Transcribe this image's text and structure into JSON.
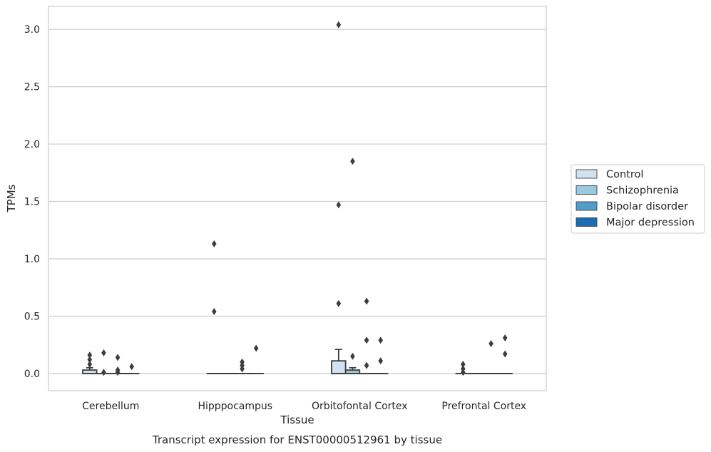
{
  "chart_data": {
    "type": "box",
    "xlabel": "Tissue",
    "ylabel": "TPMs",
    "caption": "Transcript expression for ENST00000512961 by tissue",
    "categories": [
      "Cerebellum",
      "Hipppocampus",
      "Orbitofontal Cortex",
      "Prefrontal Cortex"
    ],
    "ylim": [
      -0.15,
      3.2
    ],
    "yticks": [
      0.0,
      0.5,
      1.0,
      1.5,
      2.0,
      2.5,
      3.0
    ],
    "ytick_labels": [
      "0.0",
      "0.5",
      "1.0",
      "1.5",
      "2.0",
      "2.5",
      "3.0"
    ],
    "grid": "horizontal",
    "legend_position": "center-right",
    "series": [
      {
        "name": "Control",
        "color": "#d1e2f2",
        "boxes": [
          {
            "q1": 0.0,
            "median": 0.0,
            "q3": 0.03,
            "whisker_low": 0.0,
            "whisker_high": 0.05,
            "outliers": [
              0.08,
              0.12,
              0.16
            ]
          },
          {
            "q1": 0.0,
            "median": 0.0,
            "q3": 0.0,
            "whisker_low": 0.0,
            "whisker_high": 0.0,
            "outliers": [
              0.54,
              1.13
            ]
          },
          {
            "q1": 0.0,
            "median": 0.0,
            "q3": 0.11,
            "whisker_low": 0.0,
            "whisker_high": 0.21,
            "outliers": [
              0.61,
              1.47,
              3.04
            ]
          },
          {
            "q1": 0.0,
            "median": 0.0,
            "q3": 0.0,
            "whisker_low": 0.0,
            "whisker_high": 0.0,
            "outliers": [
              0.01,
              0.04,
              0.08
            ]
          }
        ]
      },
      {
        "name": "Schizophrenia",
        "color": "#9ac8e0",
        "boxes": [
          {
            "q1": 0.0,
            "median": 0.0,
            "q3": 0.0,
            "whisker_low": 0.0,
            "whisker_high": 0.0,
            "outliers": [
              0.01,
              0.18
            ]
          },
          {
            "q1": 0.0,
            "median": 0.0,
            "q3": 0.0,
            "whisker_low": 0.0,
            "whisker_high": 0.0,
            "outliers": []
          },
          {
            "q1": 0.0,
            "median": 0.0,
            "q3": 0.03,
            "whisker_low": 0.0,
            "whisker_high": 0.05,
            "outliers": [
              0.15,
              1.85
            ]
          },
          {
            "q1": 0.0,
            "median": 0.0,
            "q3": 0.0,
            "whisker_low": 0.0,
            "whisker_high": 0.0,
            "outliers": []
          }
        ]
      },
      {
        "name": "Bipolar disorder",
        "color": "#529dcc",
        "boxes": [
          {
            "q1": 0.0,
            "median": 0.0,
            "q3": 0.0,
            "whisker_low": 0.0,
            "whisker_high": 0.0,
            "outliers": [
              0.01,
              0.03,
              0.14
            ]
          },
          {
            "q1": 0.0,
            "median": 0.0,
            "q3": 0.0,
            "whisker_low": 0.0,
            "whisker_high": 0.0,
            "outliers": [
              0.04,
              0.07,
              0.1
            ]
          },
          {
            "q1": 0.0,
            "median": 0.0,
            "q3": 0.0,
            "whisker_low": 0.0,
            "whisker_high": 0.0,
            "outliers": [
              0.07,
              0.29,
              0.63
            ]
          },
          {
            "q1": 0.0,
            "median": 0.0,
            "q3": 0.0,
            "whisker_low": 0.0,
            "whisker_high": 0.0,
            "outliers": [
              0.26
            ]
          }
        ]
      },
      {
        "name": "Major depression",
        "color": "#1c6cb1",
        "boxes": [
          {
            "q1": 0.0,
            "median": 0.0,
            "q3": 0.0,
            "whisker_low": 0.0,
            "whisker_high": 0.0,
            "outliers": [
              0.06
            ]
          },
          {
            "q1": 0.0,
            "median": 0.0,
            "q3": 0.0,
            "whisker_low": 0.0,
            "whisker_high": 0.0,
            "outliers": [
              0.22
            ]
          },
          {
            "q1": 0.0,
            "median": 0.0,
            "q3": 0.0,
            "whisker_low": 0.0,
            "whisker_high": 0.0,
            "outliers": [
              0.11,
              0.29
            ]
          },
          {
            "q1": 0.0,
            "median": 0.0,
            "q3": 0.0,
            "whisker_low": 0.0,
            "whisker_high": 0.0,
            "outliers": [
              0.17,
              0.31
            ]
          }
        ]
      }
    ]
  }
}
